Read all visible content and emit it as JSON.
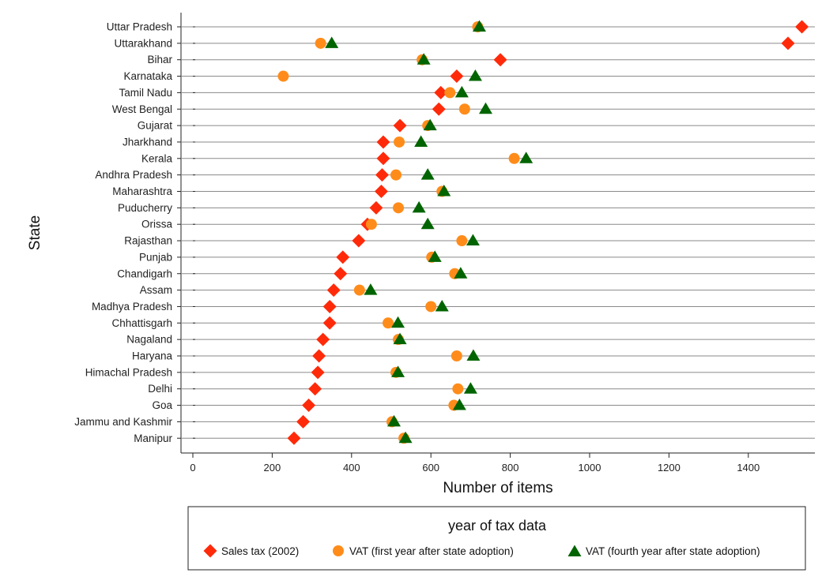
{
  "chart_data": {
    "type": "scatter",
    "orientation": "horizontal-dot-plot",
    "title": "",
    "xlabel": "Number of items",
    "ylabel": "State",
    "xlim": [
      -30,
      1550
    ],
    "xticks": [
      0,
      200,
      400,
      600,
      800,
      1000,
      1200,
      1400
    ],
    "grid": "horizontal lines at each state",
    "categories": [
      "Uttar Pradesh",
      "Uttarakhand",
      "Bihar",
      "Karnataka",
      "Tamil Nadu",
      "West Bengal",
      "Gujarat",
      "Jharkhand",
      "Kerala",
      "Andhra Pradesh",
      "Maharashtra",
      "Puducherry",
      "Orissa",
      "Rajasthan",
      "Punjab",
      "Chandigarh",
      "Assam",
      "Madhya Pradesh",
      "Chhattisgarh",
      "Nagaland",
      "Haryana",
      "Himachal Pradesh",
      "Delhi",
      "Goa",
      "Jammu and Kashmir",
      "Manipur"
    ],
    "series": [
      {
        "name": "Sales tax (2002)",
        "marker": "diamond",
        "color": "#ff2a0a",
        "values": [
          1535,
          1500,
          775,
          665,
          625,
          620,
          522,
          480,
          480,
          477,
          475,
          462,
          440,
          418,
          378,
          372,
          355,
          345,
          345,
          328,
          318,
          315,
          308,
          292,
          278,
          255
        ]
      },
      {
        "name": "VAT (first year after state adoption)",
        "marker": "circle",
        "color": "#ff8c1a",
        "values": [
          718,
          322,
          578,
          228,
          648,
          685,
          592,
          520,
          810,
          512,
          628,
          518,
          450,
          678,
          602,
          660,
          420,
          600,
          492,
          518,
          665,
          512,
          668,
          658,
          502,
          532
        ]
      },
      {
        "name": "VAT (fourth year after state adoption)",
        "marker": "triangle",
        "color": "#006400",
        "values": [
          722,
          350,
          582,
          712,
          678,
          738,
          598,
          575,
          840,
          592,
          633,
          570,
          592,
          706,
          610,
          675,
          448,
          628,
          517,
          522,
          707,
          517,
          700,
          672,
          507,
          536
        ]
      }
    ],
    "legend": {
      "title": "year of tax data",
      "position": "bottom",
      "entries": [
        "Sales tax (2002)",
        "VAT (first year after state adoption)",
        "VAT (fourth year after state adoption)"
      ]
    }
  }
}
